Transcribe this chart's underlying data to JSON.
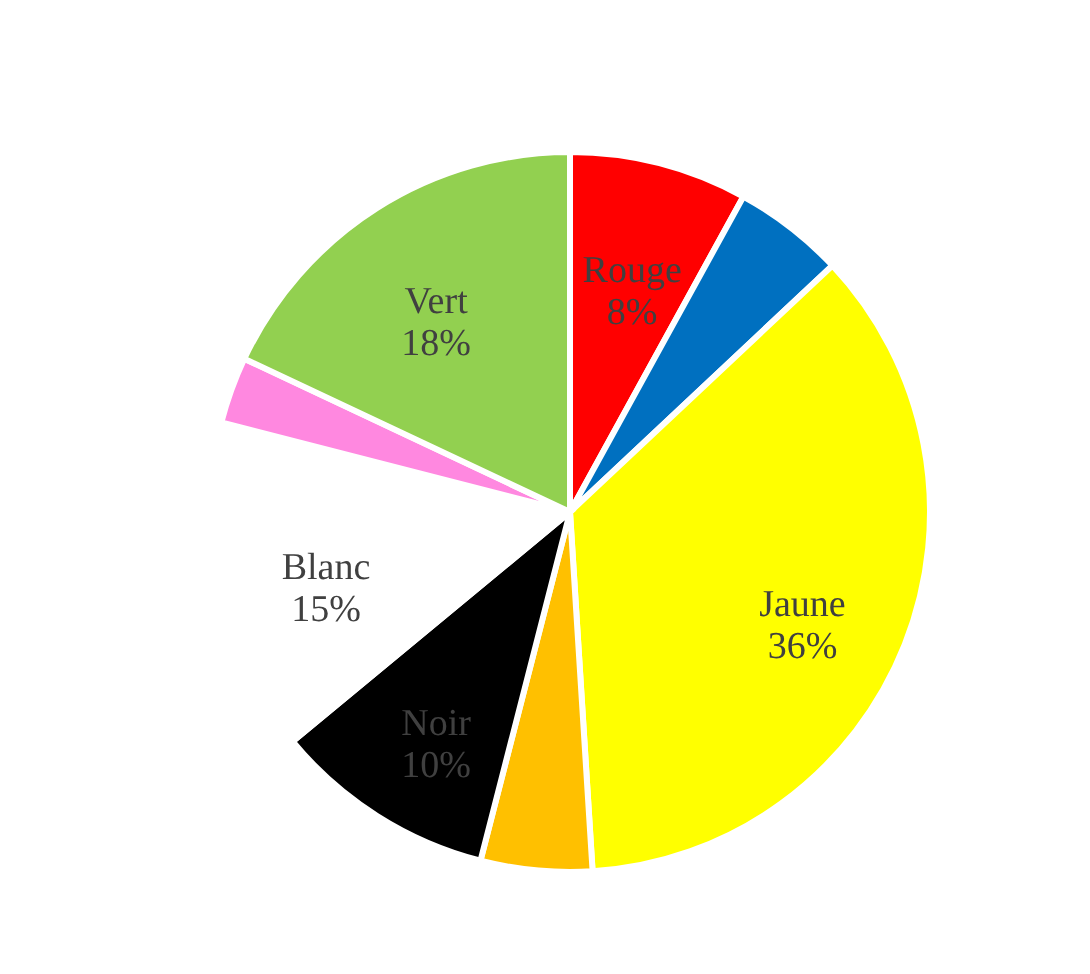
{
  "chart_data": {
    "type": "pie",
    "categories": [
      "Rouge",
      null,
      "Jaune",
      null,
      "Noir",
      "Blanc",
      null,
      "Vert"
    ],
    "values": [
      8,
      5,
      36,
      5,
      10,
      15,
      3,
      18
    ],
    "value_labels": [
      "8%",
      null,
      "36%",
      null,
      "10%",
      "15%",
      null,
      "18%"
    ],
    "colors": [
      "#ff0000",
      "#0070c0",
      "#ffff00",
      "#ffc000",
      "#000000",
      "#ffffff",
      "#ff88e0",
      "#92d050"
    ]
  }
}
